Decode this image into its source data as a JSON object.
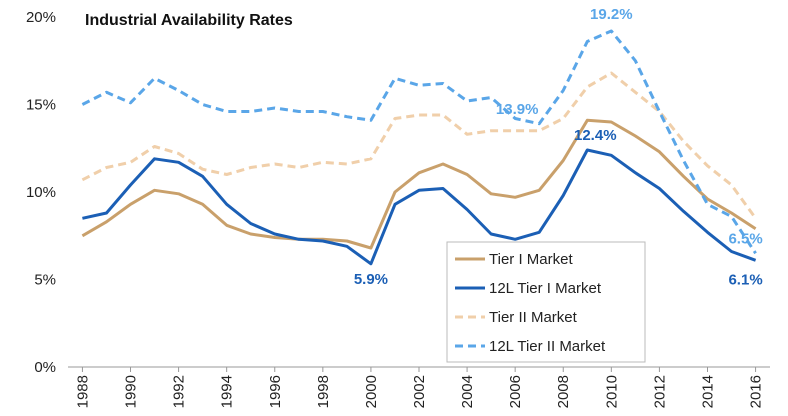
{
  "chart_data": {
    "type": "line",
    "title": "Industrial Availability Rates",
    "x": [
      1988,
      1989,
      1990,
      1991,
      1992,
      1993,
      1994,
      1995,
      1996,
      1997,
      1998,
      1999,
      2000,
      2001,
      2002,
      2003,
      2004,
      2005,
      2006,
      2007,
      2008,
      2009,
      2010,
      2011,
      2012,
      2013,
      2014,
      2015,
      2016
    ],
    "xlim": [
      1987.4,
      2016.6
    ],
    "xticks": [
      1988,
      1990,
      1992,
      1994,
      1996,
      1998,
      2000,
      2002,
      2004,
      2006,
      2008,
      2010,
      2012,
      2014,
      2016
    ],
    "ylim": [
      0,
      20
    ],
    "yticks": [
      {
        "value": 0,
        "label": "0%"
      },
      {
        "value": 5,
        "label": "5%"
      },
      {
        "value": 10,
        "label": "10%"
      },
      {
        "value": 15,
        "label": "15%"
      },
      {
        "value": 20,
        "label": "20%"
      }
    ],
    "grid": false,
    "legend": "lower right",
    "series": [
      {
        "name": "Tier I Market",
        "color": "#c9a06b",
        "dashed": false,
        "values": [
          7.5,
          8.3,
          9.3,
          10.1,
          9.9,
          9.3,
          8.1,
          7.6,
          7.4,
          7.3,
          7.3,
          7.2,
          6.8,
          10.0,
          11.1,
          11.6,
          11.0,
          9.9,
          9.7,
          10.1,
          11.8,
          14.1,
          14.0,
          13.2,
          12.3,
          10.9,
          9.6,
          8.8,
          7.9
        ]
      },
      {
        "name": "12L Tier I Market",
        "color": "#1b5fb5",
        "dashed": false,
        "values": [
          8.5,
          8.8,
          10.4,
          11.9,
          11.7,
          10.9,
          9.3,
          8.2,
          7.6,
          7.3,
          7.2,
          6.9,
          5.9,
          9.3,
          10.1,
          10.2,
          9.0,
          7.6,
          7.3,
          7.7,
          9.8,
          12.4,
          12.1,
          11.1,
          10.2,
          8.9,
          7.7,
          6.6,
          6.1
        ],
        "value_labels": [
          null,
          null,
          null,
          null,
          null,
          null,
          null,
          null,
          null,
          null,
          null,
          null,
          "5.9%",
          null,
          null,
          null,
          null,
          null,
          null,
          null,
          null,
          "12.4%",
          null,
          null,
          null,
          null,
          null,
          null,
          "6.1%"
        ]
      },
      {
        "name": "Tier II Market",
        "color": "#f0cfaa",
        "dashed": true,
        "values": [
          10.7,
          11.4,
          11.7,
          12.6,
          12.2,
          11.3,
          11.0,
          11.4,
          11.6,
          11.4,
          11.7,
          11.6,
          11.9,
          14.2,
          14.4,
          14.4,
          13.3,
          13.5,
          13.5,
          13.5,
          14.2,
          16.0,
          16.8,
          15.7,
          14.6,
          12.9,
          11.5,
          10.4,
          8.5
        ]
      },
      {
        "name": "12L Tier II Market",
        "color": "#5aa6e8",
        "dashed": true,
        "values": [
          15.0,
          15.7,
          15.1,
          16.5,
          15.8,
          15.0,
          14.6,
          14.6,
          14.8,
          14.6,
          14.6,
          14.3,
          14.1,
          16.5,
          16.1,
          16.2,
          15.2,
          15.4,
          14.2,
          13.9,
          15.8,
          18.6,
          19.2,
          17.5,
          14.6,
          11.8,
          9.3,
          8.6,
          6.5
        ],
        "value_labels": [
          null,
          null,
          null,
          null,
          null,
          null,
          null,
          null,
          null,
          null,
          null,
          null,
          null,
          null,
          null,
          null,
          null,
          null,
          null,
          "13.9%",
          null,
          null,
          "19.2%",
          null,
          null,
          null,
          null,
          null,
          "6.5%"
        ]
      }
    ]
  }
}
